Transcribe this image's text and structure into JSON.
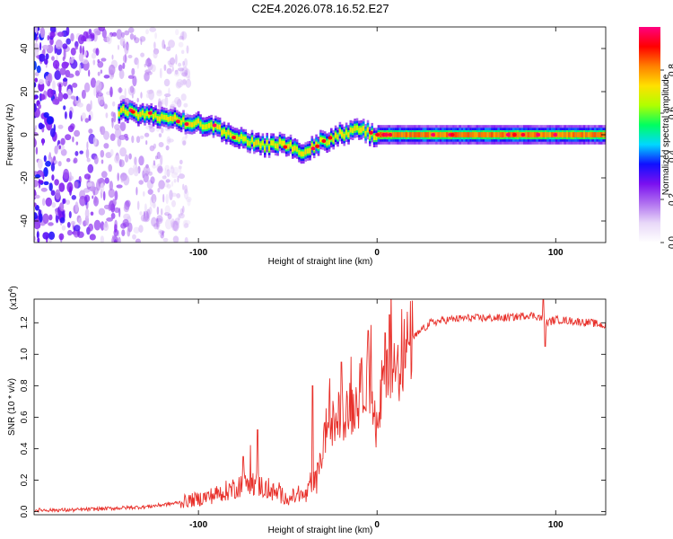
{
  "title": "C2E4.2026.078.16.52.E27",
  "chart_data": [
    {
      "type": "heatmap",
      "name": "spectrogram",
      "xlabel": "Height of straight line (km)",
      "ylabel": "Frequency (Hz)",
      "xlim": [
        -192,
        128
      ],
      "ylim": [
        -50,
        50
      ],
      "x_ticks": [
        -100,
        0,
        100
      ],
      "x_tick_labels": [
        "-100",
        "0",
        "100"
      ],
      "y_ticks": [
        -40,
        -20,
        0,
        20,
        40
      ],
      "y_tick_labels": [
        "-40",
        "-20",
        "0",
        "20",
        "40"
      ],
      "colorbar": {
        "label": "Normalized spectral amplitude",
        "range": [
          0,
          1
        ],
        "ticks": [
          0.0,
          0.2,
          0.4,
          0.6,
          0.8
        ],
        "tick_labels": [
          "0.0",
          "0.2",
          "0.4",
          "0.6",
          "0.8"
        ],
        "colormap": [
          "#ffffff",
          "#e8d8f8",
          "#b070f0",
          "#7a10f0",
          "#1010ff",
          "#00d8ff",
          "#00ff60",
          "#b0ff00",
          "#ffe000",
          "#ff8000",
          "#ff0000",
          "#ff0080"
        ]
      },
      "ridge": {
        "x": [
          -145,
          -130,
          -115,
          -100,
          -90,
          -80,
          -70,
          -62,
          -55,
          -48,
          -42,
          -36,
          -30,
          -22,
          -15,
          -10,
          -6,
          -2,
          0,
          20,
          60,
          100,
          128
        ],
        "y": [
          11,
          9,
          7,
          5,
          3,
          0,
          -4,
          -5,
          -4,
          -6,
          -8,
          -5,
          -3,
          0,
          1,
          3,
          1,
          0,
          0,
          0,
          0,
          0,
          0
        ],
        "peak_normalized_amplitude": 1.0
      },
      "noise_region_x": [
        -192,
        -125
      ]
    },
    {
      "type": "line",
      "name": "snr",
      "xlabel": "Height of straight line (km)",
      "ylabel": "SNR (10 * v/v)",
      "ylabel_multiplier": "(x10",
      "ylabel_multiplier_exp": "4",
      "ylabel_multiplier_close": ")",
      "xlim": [
        -192,
        128
      ],
      "ylim": [
        -0.02,
        1.35
      ],
      "x_ticks": [
        -100,
        0,
        100
      ],
      "x_tick_labels": [
        "-100",
        "0",
        "100"
      ],
      "y_ticks": [
        0.0,
        0.2,
        0.4,
        0.6,
        0.8,
        1.0,
        1.2
      ],
      "y_tick_labels": [
        "0.0",
        "0.2",
        "0.4",
        "0.6",
        "0.8",
        "1.0",
        "1.2"
      ],
      "color": "#e8302a",
      "series": [
        {
          "name": "SNR",
          "x": [
            -192,
            -170,
            -150,
            -130,
            -115,
            -100,
            -90,
            -80,
            -75,
            -72,
            -68,
            -60,
            -50,
            -40,
            -35,
            -32,
            -30,
            -27,
            -25,
            -22,
            -20,
            -15,
            -10,
            -8,
            -5,
            -3,
            -1,
            1,
            3,
            5,
            6,
            8,
            10,
            15,
            20,
            30,
            40,
            50,
            60,
            70,
            80,
            85,
            90,
            93,
            95,
            100,
            110,
            120,
            128
          ],
          "y": [
            0.01,
            0.01,
            0.02,
            0.03,
            0.05,
            0.08,
            0.11,
            0.15,
            0.18,
            0.2,
            0.18,
            0.13,
            0.09,
            0.1,
            0.18,
            0.28,
            0.45,
            0.6,
            0.55,
            0.6,
            0.62,
            0.65,
            0.72,
            0.8,
            0.9,
            0.75,
            0.55,
            0.5,
            0.85,
            0.95,
            1.0,
            0.88,
            0.9,
            1.0,
            1.1,
            1.2,
            1.22,
            1.23,
            1.23,
            1.23,
            1.24,
            1.25,
            1.24,
            1.22,
            1.2,
            1.22,
            1.21,
            1.2,
            1.18
          ]
        }
      ],
      "spikes": [
        {
          "x": -75,
          "y": 0.35
        },
        {
          "x": -67,
          "y": 0.52
        },
        {
          "x": -36,
          "y": 0.8
        },
        {
          "x": -20,
          "y": 0.95
        },
        {
          "x": -5,
          "y": 1.15
        },
        {
          "x": 7,
          "y": 1.25
        },
        {
          "x": 93,
          "y": 1.35
        },
        {
          "x": 94,
          "y": 1.05
        }
      ]
    }
  ]
}
